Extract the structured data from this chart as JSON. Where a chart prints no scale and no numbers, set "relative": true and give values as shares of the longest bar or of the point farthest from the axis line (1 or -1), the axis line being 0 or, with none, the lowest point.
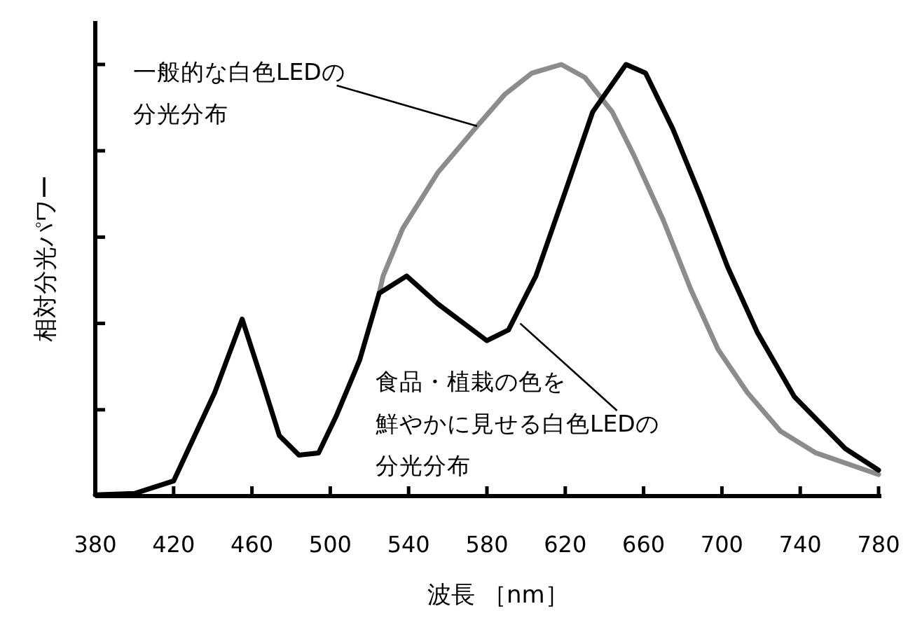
{
  "chart_data": {
    "type": "line",
    "relative": true,
    "xlabel": "波長 ［nm］",
    "ylabel": "相対分光パワー",
    "xlim": [
      380,
      780
    ],
    "xticks": [
      380,
      420,
      460,
      500,
      540,
      580,
      620,
      660,
      700,
      740,
      780
    ],
    "series": [
      {
        "color": "#000000",
        "x": [
          380,
          400,
          420,
          441,
          455,
          465,
          474,
          484,
          494,
          503,
          515,
          525,
          539,
          555,
          580,
          591,
          605,
          620,
          634,
          651,
          661,
          675,
          689,
          703,
          718,
          737,
          763,
          780
        ],
        "values": [
          0.003,
          0.006,
          0.035,
          0.24,
          0.41,
          0.27,
          0.14,
          0.095,
          0.1,
          0.185,
          0.315,
          0.47,
          0.51,
          0.445,
          0.36,
          0.385,
          0.51,
          0.705,
          0.89,
          1.0,
          0.98,
          0.85,
          0.695,
          0.53,
          0.38,
          0.23,
          0.11,
          0.06
        ]
      },
      {
        "color": "#8c8c8c",
        "x": [
          525,
          527,
          537,
          555,
          575,
          589,
          603,
          618,
          630,
          644,
          655,
          670,
          684,
          698,
          713,
          730,
          748,
          780
        ],
        "values": [
          0.47,
          0.51,
          0.62,
          0.75,
          0.857,
          0.93,
          0.98,
          1.0,
          0.97,
          0.89,
          0.79,
          0.64,
          0.48,
          0.34,
          0.24,
          0.15,
          0.1,
          0.05
        ]
      }
    ],
    "annotations": [
      {
        "text": "一般的な白色LEDの分光分布",
        "x": 575,
        "y": 0.857
      },
      {
        "text": "食品・植栽の色を鮮やかに見せる白色LEDの分光分布",
        "x": 597,
        "y": 0.4
      }
    ]
  }
}
